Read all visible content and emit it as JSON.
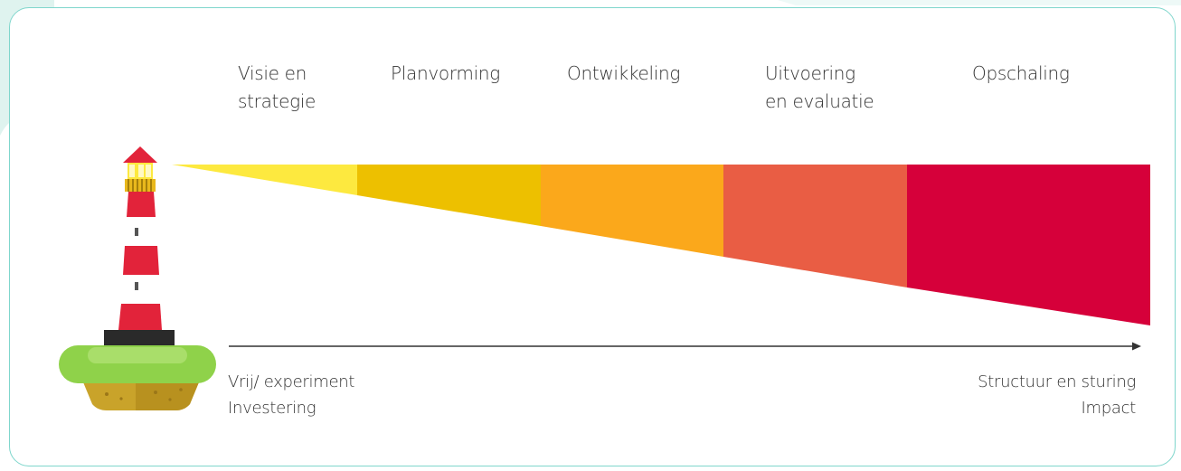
{
  "stages": [
    {
      "label": "Visie en\nstrategie",
      "color": "#fde93f"
    },
    {
      "label": "Planvorming",
      "color": "#edc000"
    },
    {
      "label": "Ontwikkeling",
      "color": "#fba81b"
    },
    {
      "label": "Uitvoering\nen evaluatie",
      "color": "#e95d44"
    },
    {
      "label": "Opschaling",
      "color": "#d6003a"
    }
  ],
  "axis": {
    "left_top": "Vrij/ experiment",
    "left_bottom": "Investering",
    "right_top": "Structuur en sturing",
    "right_bottom": "Impact"
  },
  "colors": {
    "card_border": "#7fd6cc",
    "lighthouse_red": "#e2233a",
    "lighthouse_white": "#ffffff",
    "grass": "#8fd24a",
    "soil": "#c9a32a"
  }
}
